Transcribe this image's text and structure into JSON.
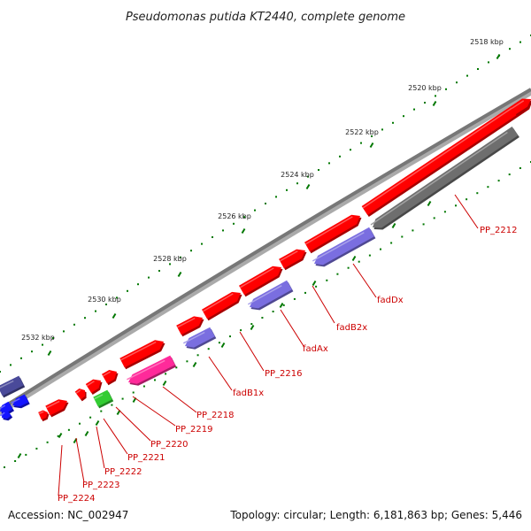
{
  "title": "Pseudomonas putida KT2440, complete genome",
  "footer": {
    "accession": "Accession: NC_002947",
    "summary": "Topology: circular; Length: 6,181,863 bp; Genes: 5,446"
  },
  "colors": {
    "backbone": "#888888",
    "forward_gene": "#ff0000",
    "reverse_gene": "#7a6ee0",
    "reverse_gene_gray": "#6e6e6e",
    "magenta_gene": "#ff2a9a",
    "green_gene": "#33cc33",
    "blue_gene": "#1414ff",
    "navy_gene": "#4a4a9a",
    "tick": "#007700",
    "label": "#cc0000"
  },
  "kbp_ticks": [
    "2518 kbp",
    "2520 kbp",
    "2522 kbp",
    "2524 kbp",
    "2526 kbp",
    "2528 kbp",
    "2530 kbp",
    "2532 kbp"
  ],
  "gene_labels": [
    "PP_2212",
    "fadDx",
    "fadB2x",
    "fadAx",
    "PP_2216",
    "fadB1x",
    "PP_2218",
    "PP_2219",
    "PP_2220",
    "PP_2221",
    "PP_2222",
    "PP_2223",
    "PP_2224"
  ]
}
